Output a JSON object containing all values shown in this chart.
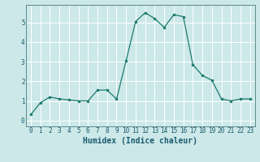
{
  "x": [
    0,
    1,
    2,
    3,
    4,
    5,
    6,
    7,
    8,
    9,
    10,
    11,
    12,
    13,
    14,
    15,
    16,
    17,
    18,
    19,
    20,
    21,
    22,
    23
  ],
  "y": [
    0.3,
    0.9,
    1.2,
    1.1,
    1.05,
    1.0,
    1.0,
    1.55,
    1.55,
    1.1,
    3.05,
    5.05,
    5.5,
    5.2,
    4.75,
    5.4,
    5.3,
    2.85,
    2.3,
    2.05,
    1.1,
    1.0,
    1.1,
    1.1
  ],
  "xlabel": "Humidex (Indice chaleur)",
  "xlim": [
    -0.5,
    23.5
  ],
  "ylim": [
    -0.3,
    5.9
  ],
  "yticks": [
    0,
    1,
    2,
    3,
    4,
    5
  ],
  "xticks": [
    0,
    1,
    2,
    3,
    4,
    5,
    6,
    7,
    8,
    9,
    10,
    11,
    12,
    13,
    14,
    15,
    16,
    17,
    18,
    19,
    20,
    21,
    22,
    23
  ],
  "line_color": "#1a7a6e",
  "marker_color": "#1a7a6e",
  "bg_color": "#cce8e8",
  "grid_color": "#ffffff",
  "axis_label_color": "#1a5a6e",
  "tick_label_color": "#1a5a6e",
  "xlabel_fontsize": 7,
  "tick_fontsize": 5.5
}
